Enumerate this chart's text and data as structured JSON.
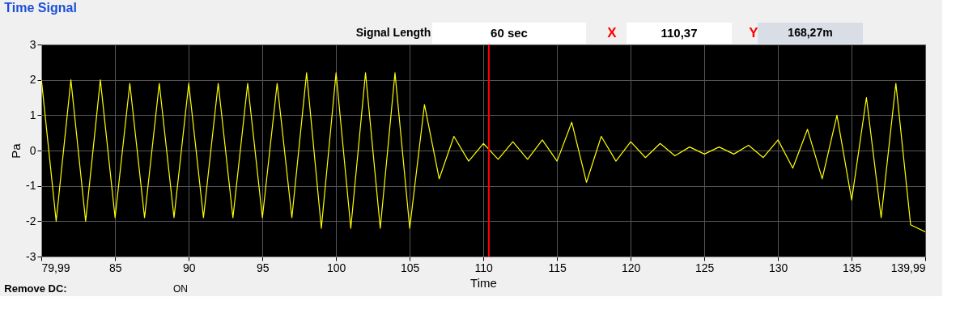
{
  "chart_data": {
    "type": "line",
    "title": "Time Signal",
    "xlabel": "Time",
    "ylabel": "Pa",
    "x": [
      80,
      81,
      82,
      83,
      84,
      85,
      86,
      87,
      88,
      89,
      90,
      91,
      92,
      93,
      94,
      95,
      96,
      97,
      98,
      99,
      100,
      101,
      102,
      103,
      104,
      105,
      106,
      107,
      108,
      109,
      110,
      111,
      112,
      113,
      114,
      115,
      116,
      117,
      118,
      119,
      120,
      121,
      122,
      123,
      124,
      125,
      126,
      127,
      128,
      129,
      130,
      131,
      132,
      133,
      134,
      135,
      136,
      137,
      138,
      139,
      139.99
    ],
    "series": [
      {
        "color": "#ffff00",
        "values": [
          2.0,
          -2.0,
          2.0,
          -2.0,
          2.0,
          -1.9,
          1.9,
          -1.9,
          1.9,
          -1.9,
          1.9,
          -1.9,
          1.9,
          -1.9,
          1.9,
          -1.9,
          1.9,
          -1.9,
          2.2,
          -2.2,
          2.2,
          -2.2,
          2.2,
          -2.2,
          2.2,
          -2.2,
          1.3,
          -0.8,
          0.4,
          -0.3,
          0.2,
          -0.25,
          0.25,
          -0.25,
          0.3,
          -0.3,
          0.8,
          -0.9,
          0.4,
          -0.3,
          0.25,
          -0.2,
          0.2,
          -0.15,
          0.1,
          -0.1,
          0.1,
          -0.1,
          0.15,
          -0.2,
          0.3,
          -0.5,
          0.6,
          -0.8,
          1.0,
          -1.4,
          1.5,
          -1.9,
          1.9,
          -2.1,
          -2.3
        ]
      }
    ],
    "xlim": [
      79.99,
      139.99
    ],
    "xticks": [
      {
        "value": 79.99,
        "label": "79,99"
      },
      85,
      90,
      95,
      100,
      105,
      110,
      115,
      120,
      125,
      130,
      135,
      {
        "value": 139.99,
        "label": "139,99"
      }
    ],
    "ylim": [
      -3,
      3
    ],
    "yticks": [
      -3,
      -2,
      -1,
      0,
      1,
      2,
      3
    ],
    "grid": true,
    "marker": "none",
    "line_style": "solid",
    "ref_lines": [
      {
        "axis": "x",
        "value": 110.37,
        "color": "#ff0000"
      }
    ],
    "annotations": [
      "Signal Length",
      "60 sec",
      "X",
      "110,37",
      "Y",
      "168,27m",
      "Remove DC:",
      "ON"
    ]
  }
}
